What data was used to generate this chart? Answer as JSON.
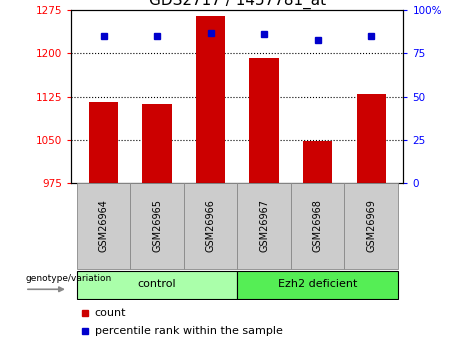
{
  "title": "GDS2717 / 1457781_at",
  "categories": [
    "GSM26964",
    "GSM26965",
    "GSM26966",
    "GSM26967",
    "GSM26968",
    "GSM26969"
  ],
  "bar_values": [
    1115,
    1112,
    1265,
    1192,
    1048,
    1130
  ],
  "percentile_values": [
    85,
    85,
    87,
    86,
    83,
    85
  ],
  "bar_color": "#CC0000",
  "percentile_color": "#0000CC",
  "ylim_left": [
    975,
    1275
  ],
  "ylim_right": [
    0,
    100
  ],
  "yticks_left": [
    975,
    1050,
    1125,
    1200,
    1275
  ],
  "yticks_right": [
    0,
    25,
    50,
    75,
    100
  ],
  "ytick_labels_right": [
    "0",
    "25",
    "50",
    "75",
    "100%"
  ],
  "grid_ticks": [
    1050,
    1125,
    1200
  ],
  "group1_label": "control",
  "group2_label": "Ezh2 deficient",
  "group1_indices": [
    0,
    1,
    2
  ],
  "group2_indices": [
    3,
    4,
    5
  ],
  "group1_color": "#aaffaa",
  "group2_color": "#55ee55",
  "genotype_label": "genotype/variation",
  "legend_count_label": "count",
  "legend_pct_label": "percentile rank within the sample",
  "bar_width": 0.55,
  "baseline": 975,
  "title_fontsize": 11,
  "cell_color": "#cccccc",
  "cell_edge_color": "#888888"
}
